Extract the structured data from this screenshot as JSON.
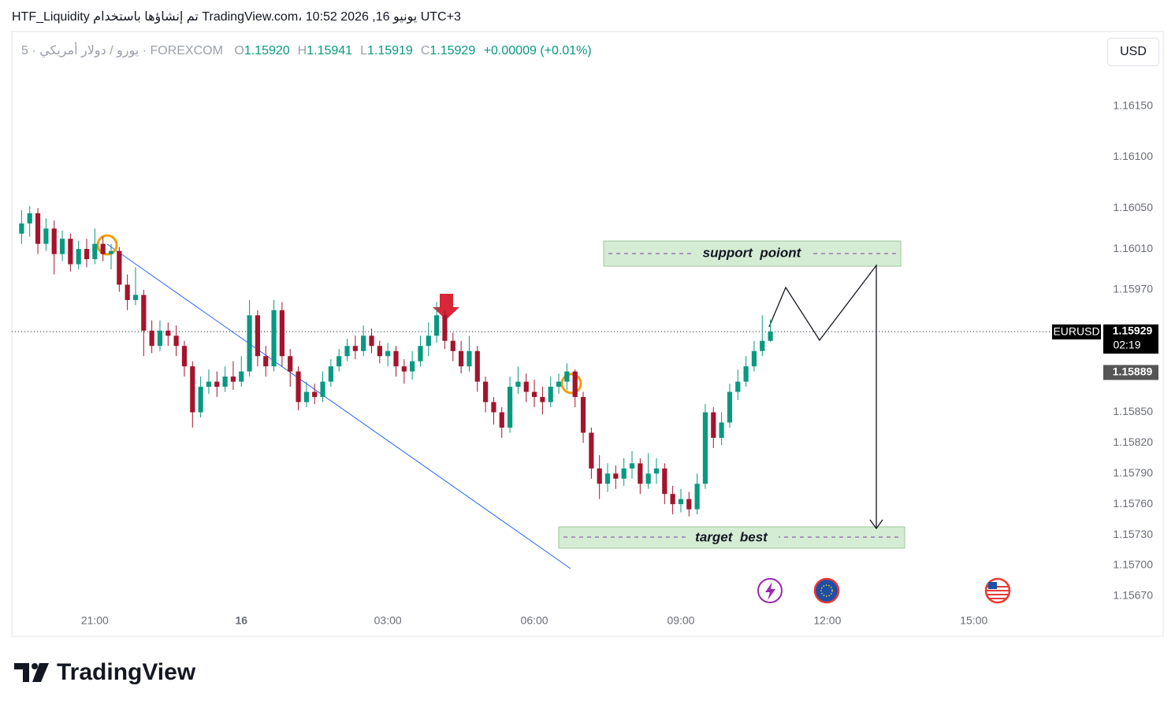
{
  "header": {
    "title": "HTF_Liquidity تم إنشاؤها باستخدام TradingView.com، يونيو 16, 2026 10:52 UTC+3"
  },
  "chart_data": {
    "type": "candlestick",
    "symbol": "5 · يورو / دولار أمريكي · FOREXCOM",
    "legend_ohlc": [
      {
        "label": "O",
        "value": "1.15920"
      },
      {
        "label": "H",
        "value": "1.15941"
      },
      {
        "label": "L",
        "value": "1.15919"
      },
      {
        "label": "C",
        "value": "1.15929"
      }
    ],
    "change": "+0.00009 (+0.01%)",
    "currency": "USD",
    "up_color": "#089981",
    "down_color": "#a3142d",
    "grid": false,
    "xlim": [
      1158,
      2499
    ],
    "xticks": [
      {
        "value": 1260,
        "label": "21:00"
      },
      {
        "value": 1440,
        "label": "16"
      },
      {
        "value": 1620,
        "label": "03:00"
      },
      {
        "value": 1800,
        "label": "06:00"
      },
      {
        "value": 1980,
        "label": "09:00"
      },
      {
        "value": 2160,
        "label": "12:00"
      },
      {
        "value": 2340,
        "label": "15:00"
      }
    ],
    "ylim": [
      1.15656,
      1.16223
    ],
    "yticks": [
      {
        "value": 1.1615,
        "label": "1.16150"
      },
      {
        "value": 1.161,
        "label": "1.16100"
      },
      {
        "value": 1.1605,
        "label": "1.16050"
      },
      {
        "value": 1.1601,
        "label": "1.16010"
      },
      {
        "value": 1.1597,
        "label": "1.15970"
      },
      {
        "value": 1.1585,
        "label": "1.15850"
      },
      {
        "value": 1.1582,
        "label": "1.15820"
      },
      {
        "value": 1.1579,
        "label": "1.15790"
      },
      {
        "value": 1.1576,
        "label": "1.15760"
      },
      {
        "value": 1.1573,
        "label": "1.15730"
      },
      {
        "value": 1.157,
        "label": "1.15700"
      },
      {
        "value": 1.1567,
        "label": "1.15670"
      }
    ],
    "x": [
      1170,
      1180,
      1190,
      1200,
      1210,
      1220,
      1230,
      1240,
      1250,
      1260,
      1270,
      1280,
      1290,
      1300,
      1310,
      1320,
      1330,
      1340,
      1350,
      1360,
      1370,
      1380,
      1390,
      1400,
      1410,
      1420,
      1430,
      1440,
      1450,
      1460,
      1470,
      1480,
      1490,
      1500,
      1510,
      1520,
      1530,
      1540,
      1550,
      1560,
      1570,
      1580,
      1590,
      1600,
      1610,
      1620,
      1630,
      1640,
      1650,
      1660,
      1670,
      1680,
      1690,
      1700,
      1710,
      1720,
      1730,
      1740,
      1750,
      1760,
      1770,
      1780,
      1790,
      1800,
      1810,
      1820,
      1830,
      1840,
      1850,
      1860,
      1870,
      1880,
      1890,
      1900,
      1910,
      1920,
      1930,
      1940,
      1950,
      1960,
      1970,
      1980,
      1990,
      2000,
      2010,
      2020,
      2030,
      2040,
      2050,
      2060,
      2070,
      2080,
      2090
    ],
    "open": [
      1.16025,
      1.16035,
      1.16045,
      1.16015,
      1.1603,
      1.16005,
      1.1602,
      1.15995,
      1.1601,
      1.16,
      1.16015,
      1.16005,
      1.16008,
      1.15975,
      1.1596,
      1.15965,
      1.1593,
      1.15915,
      1.1593,
      1.15925,
      1.15915,
      1.15895,
      1.1585,
      1.15875,
      1.1588,
      1.15875,
      1.15885,
      1.1588,
      1.1589,
      1.15945,
      1.15905,
      1.15895,
      1.1595,
      1.15905,
      1.1589,
      1.1586,
      1.1587,
      1.15865,
      1.1588,
      1.15895,
      1.15905,
      1.15915,
      1.1591,
      1.15925,
      1.15915,
      1.15905,
      1.1591,
      1.15895,
      1.1589,
      1.159,
      1.15915,
      1.15925,
      1.15945,
      1.1592,
      1.1591,
      1.15895,
      1.1591,
      1.1588,
      1.1586,
      1.1585,
      1.15835,
      1.15875,
      1.1588,
      1.1587,
      1.15865,
      1.1586,
      1.15875,
      1.1588,
      1.1589,
      1.15865,
      1.1583,
      1.15795,
      1.1578,
      1.1579,
      1.15785,
      1.15795,
      1.158,
      1.1578,
      1.1579,
      1.15795,
      1.1577,
      1.1576,
      1.15765,
      1.15755,
      1.1578,
      1.1585,
      1.15825,
      1.1584,
      1.1587,
      1.1588,
      1.15895,
      1.1591,
      1.1592
    ],
    "high": [
      1.16048,
      1.16052,
      1.1605,
      1.1604,
      1.16038,
      1.16028,
      1.16025,
      1.16018,
      1.1602,
      1.1603,
      1.16022,
      1.16015,
      1.16012,
      1.15985,
      1.15992,
      1.1597,
      1.1594,
      1.1594,
      1.15938,
      1.15935,
      1.1592,
      1.159,
      1.15885,
      1.15892,
      1.1589,
      1.15895,
      1.159,
      1.15905,
      1.1596,
      1.1595,
      1.15915,
      1.1596,
      1.15958,
      1.15912,
      1.15895,
      1.1588,
      1.15878,
      1.1589,
      1.15902,
      1.15912,
      1.15922,
      1.15925,
      1.15935,
      1.15932,
      1.1592,
      1.15918,
      1.15915,
      1.15902,
      1.1591,
      1.15925,
      1.15938,
      1.15958,
      1.1595,
      1.15928,
      1.1592,
      1.15925,
      1.15915,
      1.15885,
      1.15865,
      1.15855,
      1.15885,
      1.15895,
      1.15888,
      1.15882,
      1.15875,
      1.15885,
      1.15888,
      1.15898,
      1.15892,
      1.1587,
      1.15835,
      1.15808,
      1.158,
      1.15798,
      1.15805,
      1.15812,
      1.15805,
      1.1581,
      1.15805,
      1.158,
      1.15778,
      1.15775,
      1.15772,
      1.1579,
      1.15858,
      1.15855,
      1.1585,
      1.15878,
      1.15892,
      1.15905,
      1.1592,
      1.15945,
      1.15941
    ],
    "low": [
      1.16015,
      1.16022,
      1.16005,
      1.16008,
      1.15985,
      1.15998,
      1.15988,
      1.1599,
      1.15992,
      1.15995,
      1.15998,
      1.1599,
      1.15968,
      1.1595,
      1.15955,
      1.15905,
      1.15908,
      1.1591,
      1.15915,
      1.15905,
      1.15885,
      1.15835,
      1.15845,
      1.15868,
      1.15865,
      1.1587,
      1.15872,
      1.15875,
      1.15885,
      1.15895,
      1.15885,
      1.1589,
      1.15895,
      1.15875,
      1.15852,
      1.15855,
      1.15858,
      1.1586,
      1.15875,
      1.1589,
      1.159,
      1.15902,
      1.15905,
      1.15908,
      1.15898,
      1.15895,
      1.15885,
      1.15878,
      1.15882,
      1.15895,
      1.15905,
      1.15918,
      1.15912,
      1.159,
      1.15888,
      1.1589,
      1.1587,
      1.1585,
      1.15838,
      1.15825,
      1.1583,
      1.15868,
      1.1586,
      1.15855,
      1.15848,
      1.15855,
      1.15868,
      1.15872,
      1.15855,
      1.1582,
      1.15785,
      1.15765,
      1.15772,
      1.15775,
      1.15778,
      1.15785,
      1.1577,
      1.15775,
      1.1578,
      1.1576,
      1.1575,
      1.15752,
      1.15748,
      1.1575,
      1.15775,
      1.15815,
      1.15818,
      1.15835,
      1.15862,
      1.15875,
      1.1589,
      1.15905,
      1.15919
    ],
    "close": [
      1.16035,
      1.16045,
      1.16015,
      1.1603,
      1.16005,
      1.1602,
      1.15995,
      1.1601,
      1.16,
      1.16015,
      1.16005,
      1.16008,
      1.15975,
      1.1596,
      1.15965,
      1.1593,
      1.15915,
      1.1593,
      1.15925,
      1.15915,
      1.15895,
      1.1585,
      1.15875,
      1.1588,
      1.15875,
      1.15885,
      1.1588,
      1.1589,
      1.15945,
      1.15905,
      1.15895,
      1.1595,
      1.15905,
      1.1589,
      1.1586,
      1.1587,
      1.15865,
      1.1588,
      1.15895,
      1.15905,
      1.15915,
      1.1591,
      1.15925,
      1.15915,
      1.15905,
      1.1591,
      1.15895,
      1.1589,
      1.159,
      1.15915,
      1.15925,
      1.15945,
      1.1592,
      1.1591,
      1.15895,
      1.1591,
      1.1588,
      1.1586,
      1.1585,
      1.15835,
      1.15875,
      1.1588,
      1.1587,
      1.15865,
      1.1586,
      1.15875,
      1.1588,
      1.1589,
      1.15865,
      1.1583,
      1.15795,
      1.1578,
      1.1579,
      1.15785,
      1.15795,
      1.158,
      1.1578,
      1.1579,
      1.15795,
      1.1577,
      1.1576,
      1.15765,
      1.15755,
      1.1578,
      1.1585,
      1.15825,
      1.1584,
      1.1587,
      1.1588,
      1.15895,
      1.1591,
      1.1592,
      1.15929
    ],
    "symbol_tag": "EURUSD",
    "last_price": {
      "value": 1.15929,
      "label": "1.15929"
    },
    "countdown": "02:19",
    "marker_price": {
      "value": 1.15889,
      "label": "1.15889"
    },
    "annotations": [
      "support  poiont",
      "target  best"
    ]
  },
  "footer": {
    "logo": "TradingView"
  }
}
